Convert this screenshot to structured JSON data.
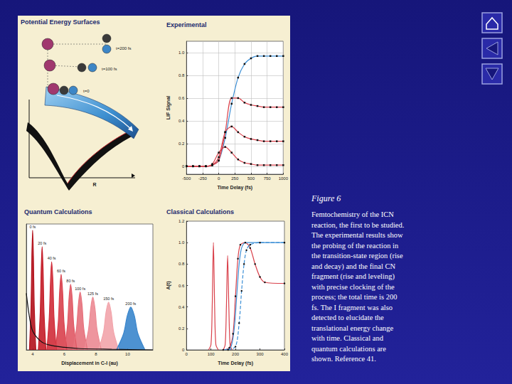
{
  "chart_data": [
    {
      "type": "line",
      "title": "Experimental",
      "x_label": "Time Delay (fs)",
      "y_label": "LIF Signal",
      "xlim": [
        -500,
        1000
      ],
      "xticks": [
        -500,
        -250,
        0,
        250,
        500,
        750,
        1000
      ],
      "ylim": [
        -0.07,
        1.1
      ],
      "yticks": [
        0,
        0.2,
        0.4,
        0.6,
        0.8,
        {
          "value": 1,
          "label": "1.0"
        }
      ],
      "grid": true,
      "x": [
        -500,
        -400,
        -300,
        -200,
        -100,
        0,
        100,
        200,
        300,
        400,
        500,
        600,
        700,
        800,
        900,
        1000
      ],
      "series": [
        {
          "color": "#3b8fd6",
          "marker": "square",
          "values": [
            0,
            0,
            0,
            0,
            0.01,
            0.05,
            0.25,
            0.55,
            0.78,
            0.9,
            0.95,
            0.97,
            0.97,
            0.97,
            0.97,
            0.97
          ]
        },
        {
          "color": "#d9404a",
          "marker": "square",
          "values": [
            0,
            0,
            0,
            0,
            0.01,
            0.05,
            0.3,
            0.6,
            0.6,
            0.56,
            0.54,
            0.53,
            0.52,
            0.52,
            0.52,
            0.52
          ]
        },
        {
          "color": "#d9404a",
          "marker": "square",
          "values": [
            0,
            0,
            0,
            0,
            0.01,
            0.08,
            0.3,
            0.35,
            0.3,
            0.26,
            0.24,
            0.23,
            0.22,
            0.22,
            0.22,
            0.22
          ]
        },
        {
          "color": "#d9404a",
          "marker": "square",
          "values": [
            0,
            0,
            0,
            0,
            0.02,
            0.12,
            0.17,
            0.12,
            0.06,
            0.03,
            0.02,
            0.01,
            0.01,
            0.01,
            0.01,
            0.01
          ]
        }
      ]
    },
    {
      "type": "area",
      "title": "Quantum Calculations",
      "x_label": "Displacement in C-I (au)",
      "xlim": [
        3.6,
        11.6
      ],
      "xticks": [
        4,
        6,
        8,
        10
      ],
      "ylim": [
        0,
        1
      ],
      "tick_labels": "x",
      "grid": false,
      "series": [
        {
          "name": "0 fs",
          "color": "#b3121c",
          "x": [
            3.8,
            3.9,
            3.95,
            4.0,
            4.05,
            4.1,
            4.2
          ],
          "values": [
            0,
            0.35,
            0.74,
            0.95,
            0.74,
            0.35,
            0
          ]
        },
        {
          "name": "20 fs",
          "color": "#c41d28",
          "x": [
            4.36,
            4.48,
            4.54,
            4.6,
            4.66,
            4.72,
            4.84
          ],
          "values": [
            0,
            0.3,
            0.64,
            0.82,
            0.64,
            0.3,
            0
          ]
        },
        {
          "name": "40 fs",
          "color": "#d02c38",
          "x": [
            4.9,
            5.05,
            5.13,
            5.2,
            5.28,
            5.35,
            5.5
          ],
          "values": [
            0,
            0.26,
            0.55,
            0.7,
            0.55,
            0.26,
            0
          ]
        },
        {
          "name": "60 fs",
          "color": "#d9404c",
          "x": [
            5.44,
            5.62,
            5.71,
            5.8,
            5.89,
            5.98,
            6.16
          ],
          "values": [
            0,
            0.22,
            0.47,
            0.6,
            0.47,
            0.22,
            0
          ]
        },
        {
          "name": "80 fs",
          "color": "#e05864",
          "x": [
            6.0,
            6.2,
            6.3,
            6.4,
            6.5,
            6.6,
            6.8
          ],
          "values": [
            0,
            0.19,
            0.41,
            0.52,
            0.41,
            0.19,
            0
          ]
        },
        {
          "name": "100 fs",
          "color": "#e6707b",
          "x": [
            6.54,
            6.77,
            6.89,
            7.0,
            7.12,
            7.23,
            7.46
          ],
          "values": [
            0,
            0.17,
            0.36,
            0.46,
            0.36,
            0.17,
            0
          ]
        },
        {
          "name": "125 fs",
          "color": "#ec8a93",
          "x": [
            7.26,
            7.53,
            7.67,
            7.8,
            7.94,
            8.07,
            8.34
          ],
          "values": [
            0,
            0.16,
            0.33,
            0.42,
            0.33,
            0.16,
            0
          ]
        },
        {
          "name": "150 fs",
          "color": "#f2a4ab",
          "x": [
            8.16,
            8.48,
            8.64,
            8.8,
            8.96,
            9.12,
            9.44
          ],
          "values": [
            0,
            0.14,
            0.3,
            0.38,
            0.3,
            0.14,
            0
          ]
        },
        {
          "name": "200 fs",
          "color": "#3a86cc",
          "x": [
            9.3,
            9.75,
            9.98,
            10.2,
            10.43,
            10.65,
            11.1
          ],
          "values": [
            0,
            0.13,
            0.27,
            0.34,
            0.27,
            0.13,
            0
          ]
        },
        {
          "type": "line",
          "color": "#111111",
          "x": [
            3.6,
            3.8,
            4.0,
            4.5,
            5.0,
            6.0,
            7.0,
            9.0,
            11.6
          ],
          "values": [
            0.45,
            0.26,
            0.15,
            0.07,
            0.04,
            0.02,
            0.01,
            0.005,
            0
          ]
        }
      ]
    },
    {
      "type": "line",
      "title": "Classical Calculations",
      "x_label": "Time Delay (fs)",
      "y_label": "A(t)",
      "xlim": [
        0,
        400
      ],
      "xticks": [
        0,
        100,
        200,
        300,
        400
      ],
      "ylim": [
        0,
        1.2
      ],
      "yticks": [
        0,
        0.2,
        0.4,
        0.6,
        0.8,
        {
          "value": 1,
          "label": "1.0"
        },
        1.2
      ],
      "grid": false,
      "series": [
        {
          "color": "#d9404a",
          "x": [
            90,
            100,
            105,
            110,
            115,
            120,
            130
          ],
          "values": [
            0,
            0.05,
            0.4,
            1.0,
            0.4,
            0.05,
            0
          ]
        },
        {
          "color": "#d9404a",
          "x": [
            150,
            158,
            163,
            168,
            173,
            178,
            186
          ],
          "values": [
            0,
            0.05,
            0.4,
            0.88,
            0.4,
            0.05,
            0
          ]
        },
        {
          "color": "#d9404a",
          "marker": "circle",
          "x": [
            150,
            175,
            190,
            200,
            210,
            220,
            240,
            260,
            280,
            300,
            320,
            400
          ],
          "values": [
            0,
            0.02,
            0.15,
            0.5,
            0.85,
            0.98,
            1.0,
            0.95,
            0.8,
            0.68,
            0.63,
            0.62
          ]
        },
        {
          "color": "#3b8fd6",
          "x": [
            150,
            180,
            195,
            205,
            215,
            225,
            240,
            260,
            300,
            400
          ],
          "values": [
            0,
            0.02,
            0.2,
            0.5,
            0.8,
            0.95,
            1.0,
            1.0,
            1.0,
            1.0
          ]
        },
        {
          "color": "#3b8fd6",
          "marker": "circle",
          "line_style": "dashed",
          "x": [
            170,
            200,
            215,
            225,
            235,
            245,
            260,
            300,
            400
          ],
          "values": [
            0,
            0.03,
            0.25,
            0.55,
            0.8,
            0.93,
            0.98,
            1.0,
            1.0
          ]
        }
      ]
    }
  ],
  "diagram": {
    "title": "Potential Energy Surfaces",
    "labels": [
      "t=200 fs",
      "t=100 fs",
      "t=0"
    ],
    "axis_label": "R"
  },
  "caption": {
    "title": "Figure 6",
    "lines": [
      "Femtochemistry of the ICN",
      "reaction, the first to be studied.",
      "The experimental results show",
      "the probing of the reaction in",
      "the transition-state region (rise",
      "and decay) and the final CN",
      "fragment (rise and leveling)",
      "with precise clocking of the",
      "process; the total time is 200",
      "fs. The I fragment was also",
      "detected to elucidate the",
      "translational energy change",
      "with time. Classical and",
      "quantum calculations are",
      "shown. Reference 41."
    ]
  }
}
